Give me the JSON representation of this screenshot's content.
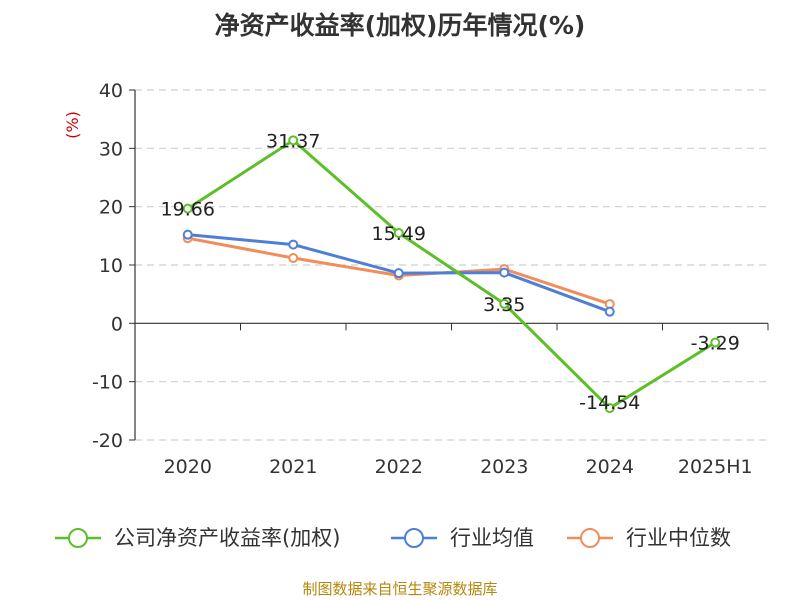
{
  "title": "净资产收益率(加权)历年情况(%)",
  "source": "制图数据来自恒生聚源数据库",
  "chart_data": {
    "type": "line",
    "title": "净资产收益率(加权)历年情况(%)",
    "categories": [
      "2020",
      "2021",
      "2022",
      "2023",
      "2024",
      "2025H1"
    ],
    "ylabel": "(%)",
    "ylim": [
      -20,
      40
    ],
    "yticks": [
      40,
      30,
      20,
      10,
      0,
      -10,
      -20
    ],
    "grid": true,
    "legend_position": "bottom",
    "series": [
      {
        "name": "公司净资产收益率(加权)",
        "color": "#5cbf28",
        "values": [
          19.66,
          31.37,
          15.49,
          3.35,
          -14.54,
          -3.29
        ],
        "labels": [
          "19.66",
          "31.37",
          "15.49",
          "3.35",
          "-14.54",
          "-3.29"
        ]
      },
      {
        "name": "行业均值",
        "color": "#4e7fd8",
        "values": [
          15.2,
          13.5,
          8.6,
          8.7,
          2.0,
          null
        ]
      },
      {
        "name": "行业中位数",
        "color": "#f28c5a",
        "values": [
          14.6,
          11.2,
          8.2,
          9.3,
          3.3,
          null
        ]
      }
    ]
  }
}
